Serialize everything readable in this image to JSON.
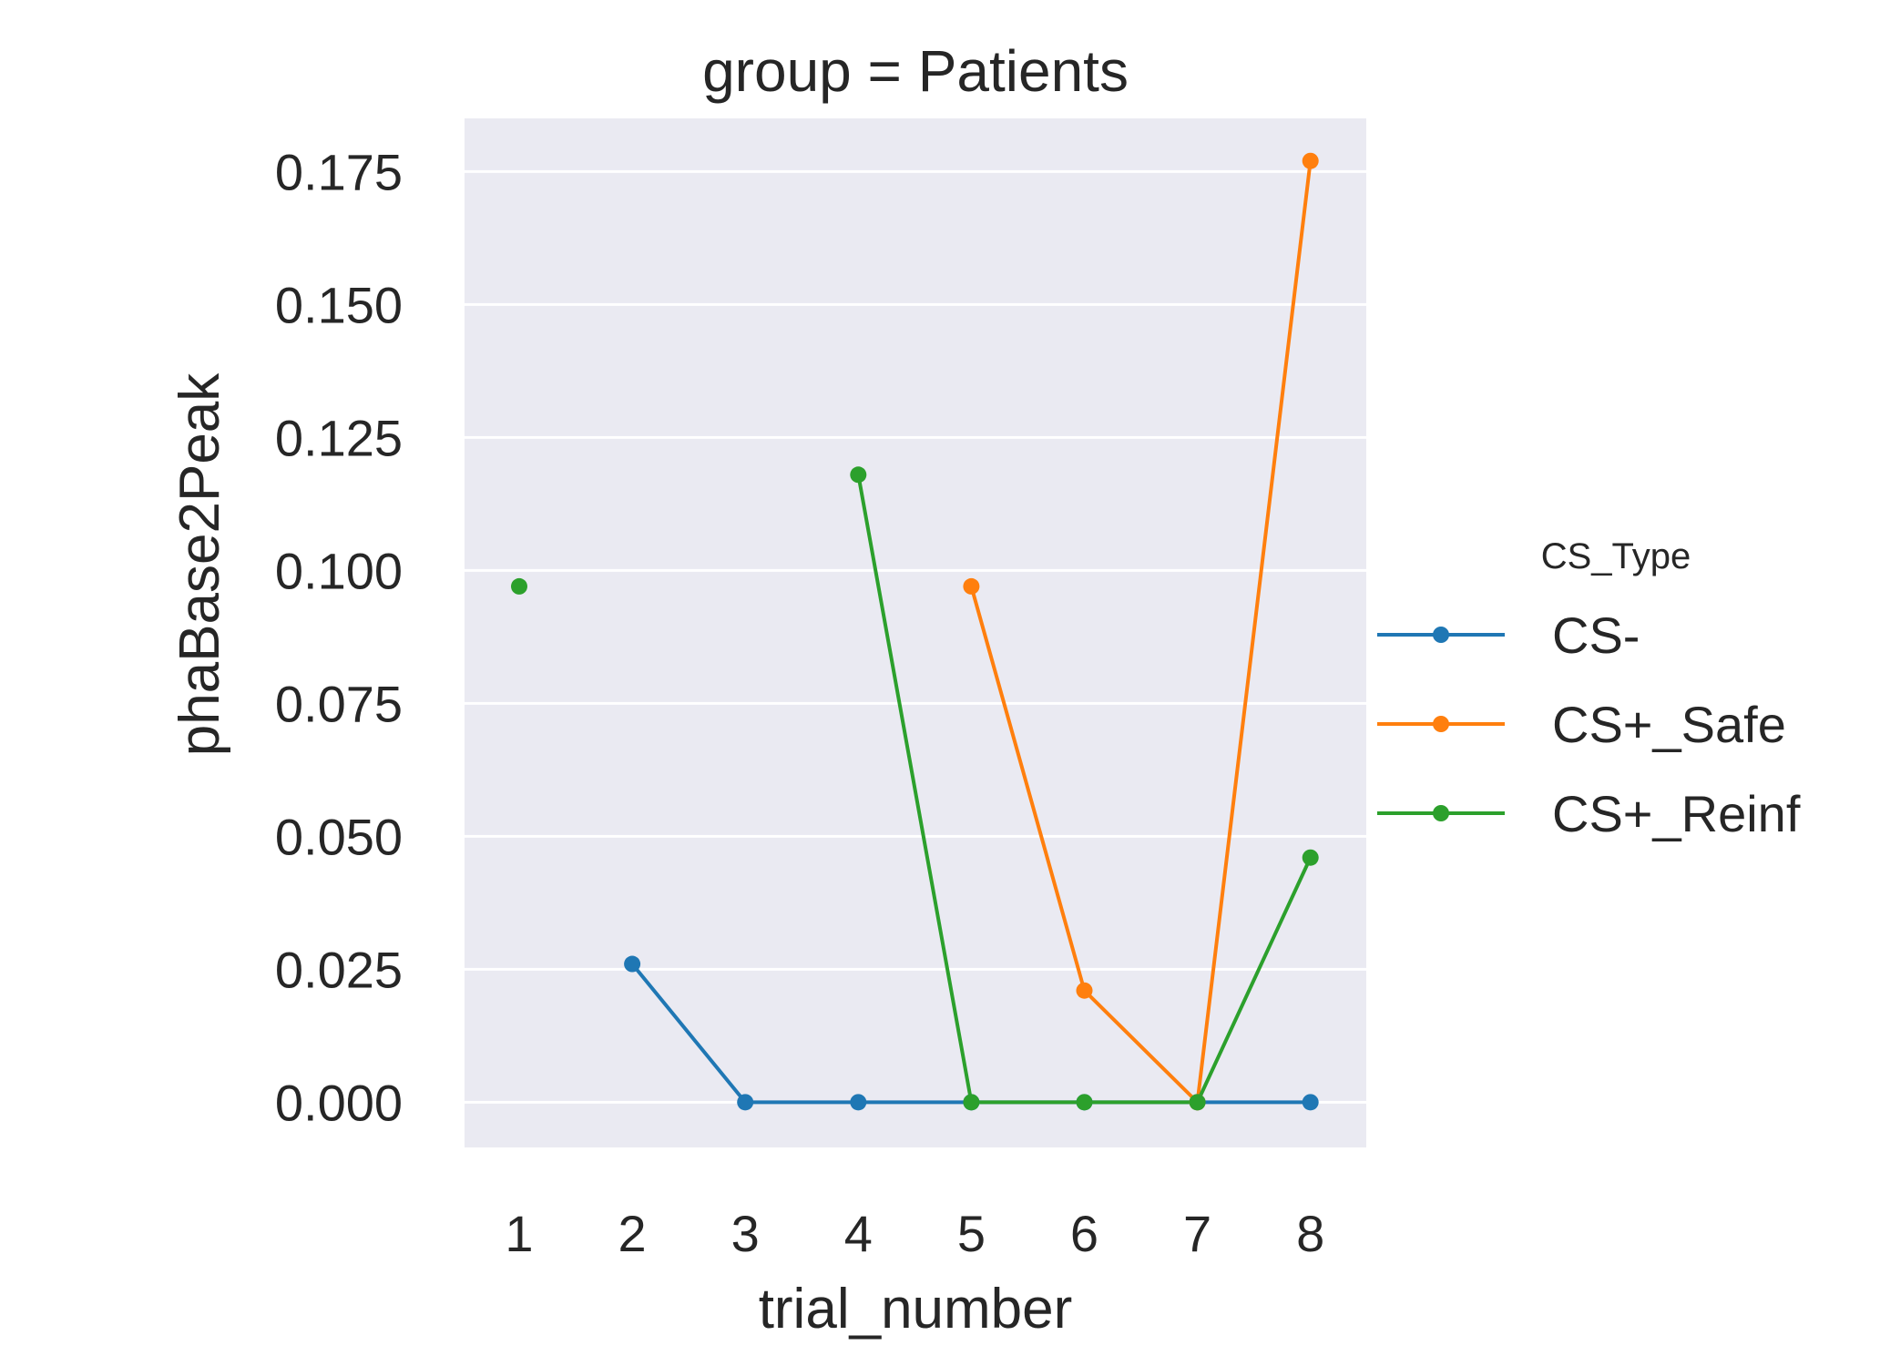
{
  "chart_data": {
    "type": "line",
    "title": "group = Patients",
    "xlabel": "trial_number",
    "ylabel": "phaBase2Peak",
    "x": [
      1,
      2,
      3,
      4,
      5,
      6,
      7,
      8
    ],
    "x_tick_labels": [
      "1",
      "2",
      "3",
      "4",
      "5",
      "6",
      "7",
      "8"
    ],
    "ylim": [
      -0.0085,
      0.185
    ],
    "y_ticks": [
      0.0,
      0.025,
      0.05,
      0.075,
      0.1,
      0.125,
      0.15,
      0.175
    ],
    "y_tick_labels": [
      "0.000",
      "0.025",
      "0.050",
      "0.075",
      "0.100",
      "0.125",
      "0.150",
      "0.175"
    ],
    "grid": true,
    "legend_title": "CS_Type",
    "legend_position": "right",
    "series": [
      {
        "name": "CS-",
        "color": "#1f77b4",
        "values": [
          null,
          0.026,
          0.0,
          0.0,
          0.0,
          0.0,
          0.0,
          0.0
        ]
      },
      {
        "name": "CS+_Safe",
        "color": "#ff7f0e",
        "values": [
          null,
          null,
          null,
          null,
          0.097,
          0.021,
          0.0,
          0.177
        ]
      },
      {
        "name": "CS+_Reinf",
        "color": "#2ca02c",
        "values": [
          0.097,
          null,
          null,
          0.118,
          0.0,
          0.0,
          0.0,
          0.046
        ]
      }
    ]
  },
  "colors": {
    "plot_background": "#eaeaf2",
    "grid": "#ffffff",
    "text": "#262626"
  }
}
